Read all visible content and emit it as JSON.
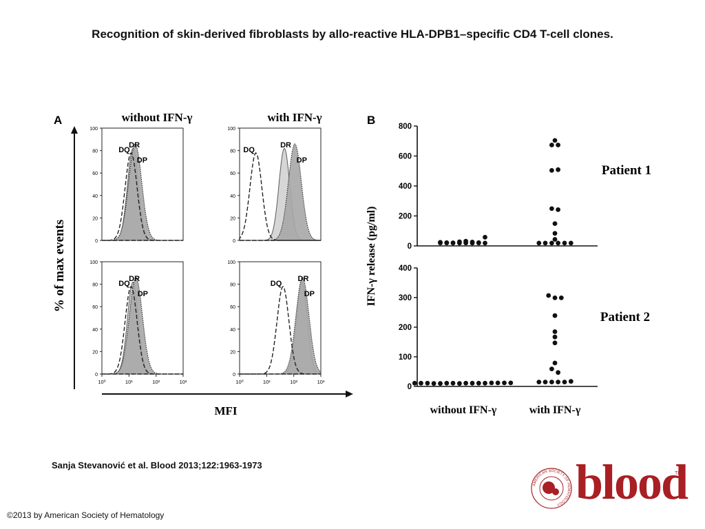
{
  "title": "Recognition of skin-derived fibroblasts by allo-reactive HLA-DPB1–specific CD4 T-cell clones.",
  "citation": "Sanja Stevanović et al. Blood 2013;122:1963-1973",
  "copyright": "©2013 by American Society of Hematology",
  "logo": {
    "word": "blood",
    "tm": "TM",
    "seal_text": "AMERICAN SOCIETY OF HEMATOLOGY",
    "color": "#a81f24"
  },
  "chart_data": [
    {
      "panel": "A",
      "type": "area",
      "col_titles": [
        "without IFN-γ",
        "with IFN-γ"
      ],
      "ylabel": "% of max events",
      "xlabel": "MFI",
      "y_ticks": [
        "0",
        "20",
        "40",
        "60",
        "80",
        "100"
      ],
      "ylim": [
        0,
        100
      ],
      "x_scale": "log",
      "x_ticks": [
        "10⁰",
        "10¹",
        "10²",
        "10³"
      ],
      "xlim": [
        1,
        1000
      ],
      "series_labels": [
        "DQ",
        "DR",
        "DP"
      ],
      "histograms": [
        {
          "row": 1,
          "col": 1,
          "peaks": {
            "DQ": 12,
            "DR": 14,
            "DP": 17
          }
        },
        {
          "row": 1,
          "col": 2,
          "peaks": {
            "DQ": 4,
            "DR": 45,
            "DP": 110
          }
        },
        {
          "row": 2,
          "col": 1,
          "peaks": {
            "DQ": 12,
            "DR": 14,
            "DP": 18
          }
        },
        {
          "row": 2,
          "col": 2,
          "peaks": {
            "DQ": 40,
            "DR": 200,
            "DP": 210
          }
        }
      ]
    },
    {
      "panel": "B",
      "type": "scatter",
      "ylabel": "IFN-γ release (pg/ml)",
      "categories": [
        "without IFN-γ",
        "with IFN-γ"
      ],
      "subplots": [
        {
          "label": "Patient 1",
          "y_ticks": [
            "0",
            "200",
            "400",
            "600",
            "800"
          ],
          "ylim": [
            0,
            800
          ],
          "series": [
            {
              "category": "without IFN-γ",
              "values": [
                10,
                8,
                6,
                6,
                5,
                5,
                7,
                14,
                18,
                12,
                8,
                6,
                5,
                6,
                5,
                44
              ]
            },
            {
              "category": "with IFN-γ",
              "values": [
                660,
                660,
                690,
                490,
                495,
                235,
                228,
                135,
                70,
                30,
                5,
                5,
                5,
                5,
                5,
                5
              ]
            }
          ]
        },
        {
          "label": "Patient 2",
          "y_ticks": [
            "0",
            "100",
            "200",
            "300",
            "400"
          ],
          "ylim": [
            0,
            400
          ],
          "series": [
            {
              "category": "without IFN-γ",
              "values": [
                4,
                4,
                4,
                3,
                3,
                4,
                4,
                3,
                4,
                4,
                4,
                4,
                5,
                5,
                5,
                5
              ]
            },
            {
              "category": "with IFN-γ",
              "values": [
                300,
                292,
                292,
                232,
                178,
                160,
                140,
                72,
                52,
                40,
                8,
                8,
                8,
                8,
                8,
                10
              ]
            }
          ]
        }
      ]
    }
  ]
}
